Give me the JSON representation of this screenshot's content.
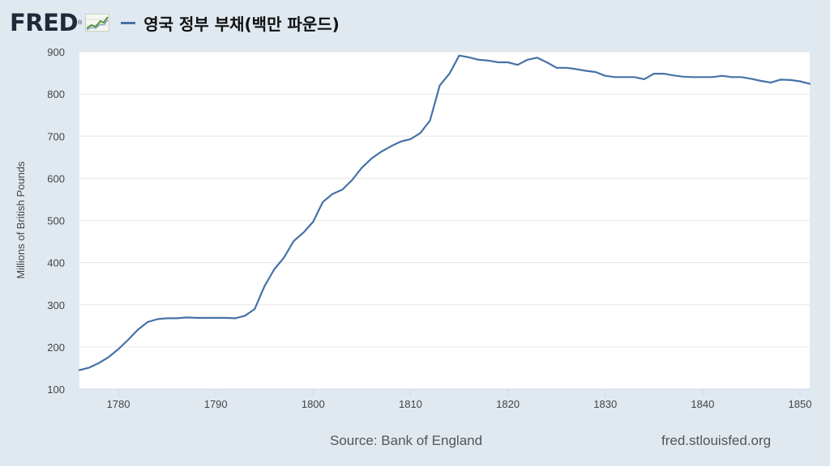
{
  "header": {
    "logo_text": "FRED",
    "logo_reg": "®",
    "title": "영국 정부 부채(백만 파운드)"
  },
  "colors": {
    "background": "#e1e9f0",
    "series": "#4572a7",
    "plot_bg": "#ffffff",
    "grid": "#e6e6e6"
  },
  "footer": {
    "source": "Source: Bank of England",
    "url": "fred.stlouisfed.org"
  },
  "chart_data": {
    "type": "line",
    "title": "영국 정부 부채(백만 파운드)",
    "xlabel": "",
    "ylabel": "Millions of British Pounds",
    "xlim": [
      1776,
      1851
    ],
    "ylim": [
      100,
      900
    ],
    "xticks": [
      1780,
      1790,
      1800,
      1810,
      1820,
      1830,
      1840,
      1850
    ],
    "yticks": [
      100,
      200,
      300,
      400,
      500,
      600,
      700,
      800,
      900
    ],
    "grid": true,
    "series": [
      {
        "name": "영국 정부 부채(백만 파운드)",
        "x": [
          1776,
          1777,
          1778,
          1779,
          1780,
          1781,
          1782,
          1783,
          1784,
          1785,
          1786,
          1787,
          1788,
          1789,
          1790,
          1791,
          1792,
          1793,
          1794,
          1795,
          1796,
          1797,
          1798,
          1799,
          1800,
          1801,
          1802,
          1803,
          1804,
          1805,
          1806,
          1807,
          1808,
          1809,
          1810,
          1811,
          1812,
          1813,
          1814,
          1815,
          1816,
          1817,
          1818,
          1819,
          1820,
          1821,
          1822,
          1823,
          1824,
          1825,
          1826,
          1827,
          1828,
          1829,
          1830,
          1831,
          1832,
          1833,
          1834,
          1835,
          1836,
          1837,
          1838,
          1839,
          1840,
          1841,
          1842,
          1843,
          1844,
          1845,
          1846,
          1847,
          1848,
          1849,
          1850,
          1851
        ],
        "values": [
          145,
          151,
          162,
          176,
          195,
          217,
          241,
          259,
          266,
          268,
          268,
          270,
          269,
          269,
          269,
          269,
          268,
          274,
          290,
          344,
          384,
          412,
          451,
          471,
          497,
          544,
          563,
          573,
          596,
          625,
          647,
          663,
          676,
          687,
          693,
          707,
          737,
          820,
          848,
          891,
          887,
          881,
          879,
          875,
          875,
          869,
          881,
          886,
          875,
          862,
          862,
          859,
          855,
          852,
          843,
          840,
          840,
          840,
          835,
          848,
          848,
          844,
          841,
          840,
          840,
          840,
          843,
          840,
          840,
          836,
          831,
          827,
          834,
          833,
          830,
          824
        ]
      }
    ]
  }
}
